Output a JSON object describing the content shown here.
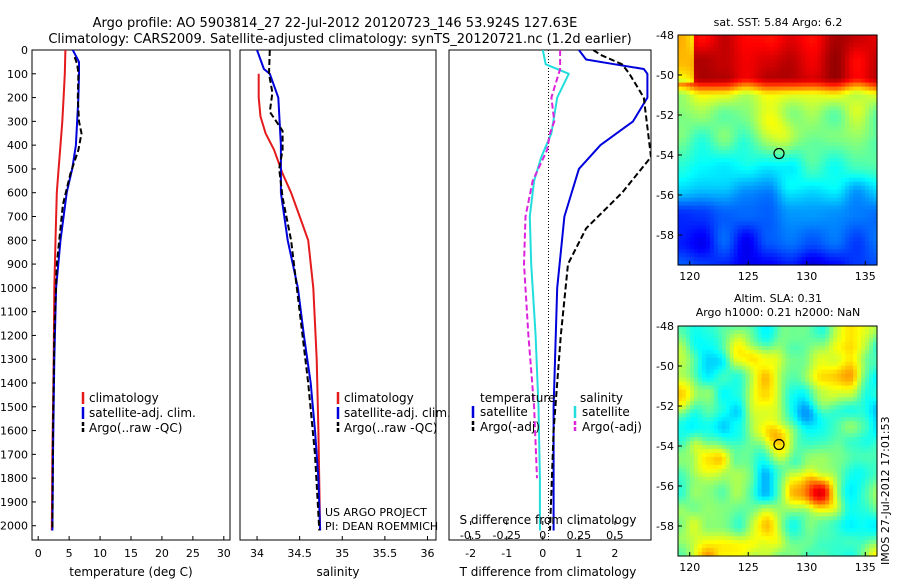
{
  "header": {
    "line1": "Argo profile: AO 5903814_27 22-Jul-2012 20120723_146 53.924S 127.63E",
    "line2": "Climatology: CARS2009. Satellite-adjusted climatology: synTS_20120721.nc (1.2d earlier)"
  },
  "colors": {
    "climatology": "#e41a1c",
    "satellite": "#0000dd",
    "argo": "#000000",
    "sal_satellite": "#22dddd",
    "sal_argo": "#dd22dd"
  },
  "chart_data": [
    {
      "id": "temperature",
      "type": "line",
      "xlabel": "temperature (deg C)",
      "ylabel": "",
      "xlim": [
        -1,
        31
      ],
      "ylim": [
        2060,
        0
      ],
      "xticks": [
        0,
        5,
        10,
        15,
        20,
        25,
        30
      ],
      "yticks": [
        0,
        100,
        200,
        300,
        400,
        500,
        600,
        700,
        800,
        900,
        1000,
        1100,
        1200,
        1300,
        1400,
        1500,
        1600,
        1700,
        1800,
        1900,
        2000
      ],
      "legend": [
        "climatology",
        "satellite-adj. clim.",
        "Argo(..raw -QC)"
      ],
      "legend_position": "bottom-right",
      "series": [
        {
          "name": "climatology",
          "style": "solid",
          "color": "#e41a1c",
          "x": [
            4.4,
            4.3,
            4.1,
            3.9,
            3.6,
            3.3,
            3.0,
            2.8,
            2.6,
            2.5,
            2.3,
            2.2
          ],
          "y": [
            0,
            100,
            200,
            300,
            400,
            500,
            600,
            800,
            1000,
            1300,
            1700,
            2020
          ]
        },
        {
          "name": "satellite-adj. clim.",
          "style": "solid",
          "color": "#0000dd",
          "x": [
            5.6,
            6.6,
            6.6,
            6.5,
            6.1,
            5.5,
            4.6,
            3.6,
            2.9,
            2.6,
            2.4,
            2.3
          ],
          "y": [
            0,
            50,
            100,
            200,
            400,
            500,
            600,
            800,
            1000,
            1300,
            1700,
            2020
          ]
        },
        {
          "name": "Argo(..raw -QC)",
          "style": "dashed",
          "color": "#000000",
          "x": [
            5.9,
            6.3,
            6.5,
            6.4,
            6.6,
            7.0,
            6.5,
            5.2,
            4.0,
            3.0,
            2.6,
            2.4,
            2.3
          ],
          "y": [
            30,
            60,
            100,
            200,
            300,
            350,
            420,
            520,
            650,
            900,
            1200,
            1600,
            2020
          ]
        }
      ]
    },
    {
      "id": "salinity",
      "type": "line",
      "xlabel": "salinity",
      "ylabel": "",
      "xlim": [
        33.8,
        36.1
      ],
      "ylim": [
        2060,
        0
      ],
      "xticks": [
        34,
        34.5,
        35,
        35.5,
        36
      ],
      "legend": [
        "climatology",
        "satellite-adj. clim.",
        "Argo(..raw -QC)"
      ],
      "legend_position": "bottom-right",
      "annotation": [
        "US ARGO PROJECT",
        "PI: DEAN ROEMMICH"
      ],
      "series": [
        {
          "name": "climatology",
          "style": "solid",
          "color": "#e41a1c",
          "x": [
            34.02,
            34.02,
            34.04,
            34.1,
            34.2,
            34.3,
            34.4,
            34.5,
            34.6,
            34.66,
            34.7,
            34.72,
            34.74
          ],
          "y": [
            100,
            200,
            280,
            350,
            420,
            520,
            600,
            700,
            800,
            1000,
            1300,
            1600,
            2020
          ]
        },
        {
          "name": "satellite-adj. clim.",
          "style": "solid",
          "color": "#0000dd",
          "x": [
            34.0,
            34.08,
            34.15,
            34.25,
            34.28,
            34.28,
            34.36,
            34.42,
            34.48,
            34.55,
            34.63,
            34.68,
            34.72,
            34.74
          ],
          "y": [
            0,
            80,
            100,
            200,
            400,
            600,
            800,
            900,
            1000,
            1200,
            1400,
            1600,
            1800,
            2020
          ]
        },
        {
          "name": "Argo(..raw -QC)",
          "style": "dashed",
          "color": "#000000",
          "x": [
            34.15,
            34.14,
            34.18,
            34.15,
            34.3,
            34.3,
            34.26,
            34.3,
            34.4,
            34.5,
            34.6,
            34.68,
            34.73
          ],
          "y": [
            0,
            100,
            180,
            260,
            340,
            420,
            500,
            620,
            800,
            1100,
            1400,
            1700,
            2020
          ]
        }
      ]
    },
    {
      "id": "difference",
      "type": "line",
      "xlabel": "T difference from climatology",
      "x2label": "S difference from climatology",
      "ylabel": "",
      "xlim": [
        -2.6,
        3.0
      ],
      "ylim": [
        2060,
        0
      ],
      "xticks": [
        -2,
        -1,
        0,
        1,
        2
      ],
      "x2lim": [
        -0.65,
        0.75
      ],
      "x2ticks": [
        -0.5,
        -0.25,
        0,
        0.25,
        0.5
      ],
      "x2ticklabels": [
        "-0.5",
        "-0.25",
        "0",
        "0.25",
        "0.5"
      ],
      "legend_temperature": {
        "title": "temperature",
        "entries": [
          "satellite",
          "Argo(-adj)"
        ]
      },
      "legend_salinity": {
        "title": "salinity",
        "entries": [
          "satellite",
          "Argo(-adj)"
        ]
      },
      "legend_position": "bottom",
      "series": [
        {
          "name": "temperature satellite",
          "axis": "T",
          "style": "solid",
          "color": "#0000dd",
          "x": [
            1.0,
            1.2,
            2.0,
            2.8,
            2.9,
            2.9,
            2.5,
            1.6,
            1.0,
            0.6,
            0.4,
            0.3,
            0.3
          ],
          "y": [
            0,
            40,
            60,
            80,
            100,
            200,
            300,
            400,
            500,
            700,
            1000,
            1500,
            2020
          ]
        },
        {
          "name": "temperature Argo(-adj)",
          "axis": "T",
          "style": "dashed",
          "color": "#000000",
          "x": [
            1.4,
            1.6,
            2.2,
            2.4,
            2.8,
            3.0,
            2.2,
            1.2,
            0.7,
            0.5,
            0.3,
            0.2
          ],
          "y": [
            0,
            20,
            60,
            100,
            200,
            450,
            600,
            750,
            900,
            1200,
            1600,
            2020
          ]
        },
        {
          "name": "salinity satellite",
          "axis": "S",
          "style": "solid",
          "color": "#22dddd",
          "x": [
            0,
            0.02,
            0.18,
            0.1,
            0.06,
            -0.01,
            -0.06,
            -0.09,
            -0.08,
            -0.05,
            -0.03,
            -0.02,
            -0.02
          ],
          "y": [
            0,
            60,
            100,
            200,
            350,
            450,
            550,
            700,
            900,
            1200,
            1500,
            1800,
            2020
          ]
        },
        {
          "name": "salinity Argo(-adj)",
          "axis": "S",
          "style": "dashed",
          "color": "#dd22dd",
          "x": [
            0.12,
            0.12,
            0.06,
            0.08,
            0.05,
            0.03,
            -0.07,
            -0.12,
            -0.13,
            -0.1,
            -0.06,
            -0.04
          ],
          "y": [
            0,
            80,
            200,
            300,
            350,
            420,
            550,
            700,
            900,
            1200,
            1500,
            1800
          ]
        }
      ]
    },
    {
      "id": "sst_map",
      "type": "heatmap",
      "title": "sat. SST: 5.84  Argo: 6.2",
      "xlim": [
        119,
        136
      ],
      "ylim": [
        -59.5,
        -48
      ],
      "xticks": [
        120,
        125,
        130,
        135
      ],
      "yticks": [
        -48,
        -50,
        -52,
        -54,
        -56,
        -58
      ],
      "marker": {
        "x": 127.63,
        "y": -53.924
      }
    },
    {
      "id": "sla_map",
      "type": "heatmap",
      "title": "Altim. SLA: 0.31",
      "subtitle": "Argo h1000: 0.21  h2000: NaN",
      "xlim": [
        119,
        136
      ],
      "ylim": [
        -59.5,
        -48
      ],
      "xticks": [
        120,
        125,
        130,
        135
      ],
      "yticks": [
        -48,
        -50,
        -52,
        -54,
        -56,
        -58
      ],
      "marker": {
        "x": 127.63,
        "y": -53.924
      }
    }
  ],
  "side_label": "IMOS 27-Jul-2012 17:01:53"
}
